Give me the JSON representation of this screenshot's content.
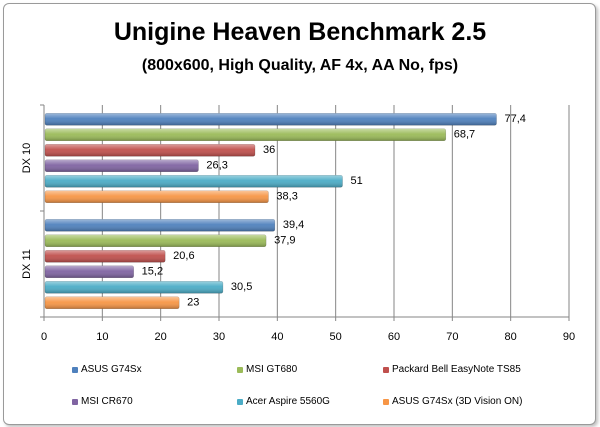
{
  "chart_data": {
    "type": "bar",
    "orientation": "horizontal",
    "title": "Unigine Heaven Benchmark 2.5",
    "subtitle": "(800x600, High Quality,  AF 4x, AA No, fps)",
    "categories": [
      "DX 10",
      "DX 11"
    ],
    "xlim": [
      0,
      90
    ],
    "xticks": [
      "0",
      "10",
      "20",
      "30",
      "40",
      "50",
      "60",
      "70",
      "80",
      "90"
    ],
    "grid": true,
    "legend_position": "bottom",
    "series": [
      {
        "name": "ASUS G74Sx",
        "color": "#4f81bd",
        "values": [
          77.4,
          39.4
        ],
        "labels": [
          "77,4",
          "39,4"
        ]
      },
      {
        "name": "MSI GT680",
        "color": "#9bbb59",
        "values": [
          68.7,
          37.9
        ],
        "labels": [
          "68,7",
          "37,9"
        ]
      },
      {
        "name": "Packard Bell EasyNote TS85",
        "color": "#c0504d",
        "values": [
          36,
          20.6
        ],
        "labels": [
          "36",
          "20,6"
        ]
      },
      {
        "name": "MSI CR670",
        "color": "#8064a2",
        "values": [
          26.3,
          15.2
        ],
        "labels": [
          "26,3",
          "15,2"
        ]
      },
      {
        "name": "Acer Aspire 5560G",
        "color": "#4bacc6",
        "values": [
          51,
          30.5
        ],
        "labels": [
          "51",
          "30,5"
        ]
      },
      {
        "name": "ASUS G74Sx (3D Vision ON)",
        "color": "#f79646",
        "values": [
          38.3,
          23
        ],
        "labels": [
          "38,3",
          "23"
        ]
      }
    ]
  }
}
